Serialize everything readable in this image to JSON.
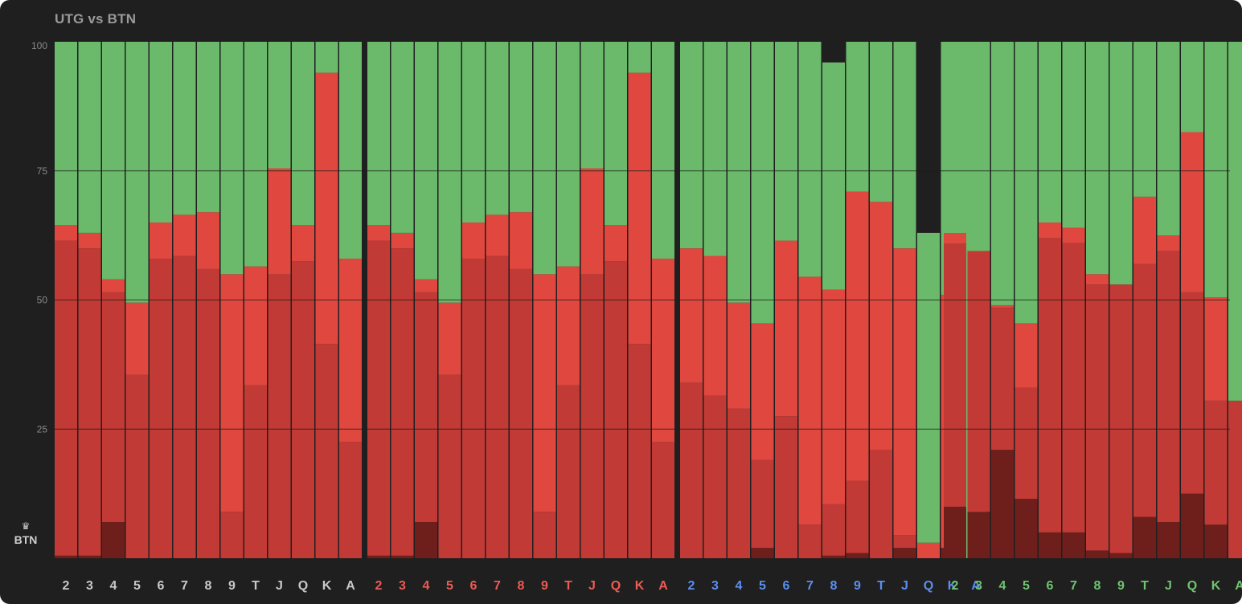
{
  "title": "UTG vs BTN",
  "position_label": "BTN",
  "icons": {
    "position_icon": "crown-icon"
  },
  "colors": {
    "background": "#1f1f1f",
    "green": "#6bba6b",
    "red_light": "#e0473f",
    "red_mid": "#c23a35",
    "red_dark": "#6e1f1c",
    "group_label_colors": [
      "#c8c8c8",
      "#ec5b55",
      "#5b8ff0",
      "#6fc46f"
    ]
  },
  "chart_data": {
    "type": "bar",
    "stacked": true,
    "title": "UTG vs BTN",
    "ylim": [
      0,
      100
    ],
    "yticks": [
      25,
      50,
      75,
      100
    ],
    "grid": true,
    "groups": [
      {
        "categories": [
          "2",
          "3",
          "4",
          "5",
          "6",
          "7",
          "8",
          "9",
          "T",
          "J",
          "Q",
          "K",
          "A"
        ],
        "series": [
          {
            "values": [
              0.5,
              0.5,
              7,
              0,
              0,
              0,
              0,
              0,
              0,
              0,
              0,
              0,
              0
            ]
          },
          {
            "values": [
              61,
              59.5,
              44.5,
              35.5,
              58,
              58.5,
              56,
              9,
              33.5,
              55,
              57.5,
              41.5,
              22.5
            ]
          },
          {
            "values": [
              3,
              3,
              2.5,
              14,
              7,
              8,
              11,
              46,
              23,
              20.5,
              7,
              52.5,
              35.5
            ]
          },
          {
            "values": [
              35.5,
              37,
              46,
              50.5,
              35,
              33.5,
              33,
              45,
              43.5,
              24.5,
              35.5,
              6,
              42
            ]
          }
        ]
      },
      {
        "categories": [
          "2",
          "3",
          "4",
          "5",
          "6",
          "7",
          "8",
          "9",
          "T",
          "J",
          "Q",
          "K",
          "A"
        ],
        "series": [
          {
            "values": [
              0.5,
              0.5,
              7,
              0,
              0,
              0,
              0,
              0,
              0,
              0,
              0,
              0,
              0
            ]
          },
          {
            "values": [
              61,
              59.5,
              44.5,
              35.5,
              58,
              58.5,
              56,
              9,
              33.5,
              55,
              57.5,
              41.5,
              22.5
            ]
          },
          {
            "values": [
              3,
              3,
              2.5,
              14,
              7,
              8,
              11,
              46,
              23,
              20.5,
              7,
              52.5,
              35.5
            ]
          },
          {
            "values": [
              35.5,
              37,
              46,
              50.5,
              35,
              33.5,
              33,
              45,
              43.5,
              24.5,
              35.5,
              6,
              42
            ]
          }
        ]
      },
      {
        "categories": [
          "2",
          "3",
          "4",
          "5",
          "6",
          "7",
          "8",
          "9",
          "T",
          "J",
          "Q",
          "K",
          "A"
        ],
        "series": [
          {
            "values": [
              0,
              0,
              0,
              2,
              0,
              0,
              0.5,
              1,
              0,
              2,
              0,
              2,
              0
            ]
          },
          {
            "values": [
              34,
              31.5,
              29,
              17,
              27.5,
              6.5,
              10,
              14,
              21,
              2.5,
              0,
              0,
              0
            ]
          },
          {
            "values": [
              26,
              27,
              20.5,
              26.5,
              34,
              48,
              41.5,
              56,
              48,
              55.5,
              3,
              49,
              0
            ]
          },
          {
            "values": [
              40,
              41.5,
              50.5,
              54.5,
              38.5,
              45.5,
              44,
              29,
              31,
              40,
              60,
              49,
              100
            ]
          }
        ]
      },
      {
        "categories": [
          "2",
          "3",
          "4",
          "5",
          "6",
          "7",
          "8",
          "9",
          "T",
          "J",
          "Q",
          "K",
          "A"
        ],
        "series": [
          {
            "values": [
              10,
              9,
              21,
              11.5,
              5,
              5,
              1.5,
              1,
              8,
              7,
              12.5,
              6.5,
              0
            ]
          },
          {
            "values": [
              51,
              50.5,
              27.5,
              21.5,
              57,
              56,
              51.5,
              52,
              49,
              52.5,
              39,
              24,
              30.5
            ]
          },
          {
            "values": [
              2,
              0,
              0.5,
              12.5,
              3,
              3,
              2,
              0,
              13,
              3,
              31,
              20,
              0
            ]
          },
          {
            "values": [
              37,
              40.5,
              51,
              54.5,
              35,
              36,
              45,
              47,
              30,
              37.5,
              17.5,
              49.5,
              69.5
            ]
          }
        ]
      }
    ]
  }
}
